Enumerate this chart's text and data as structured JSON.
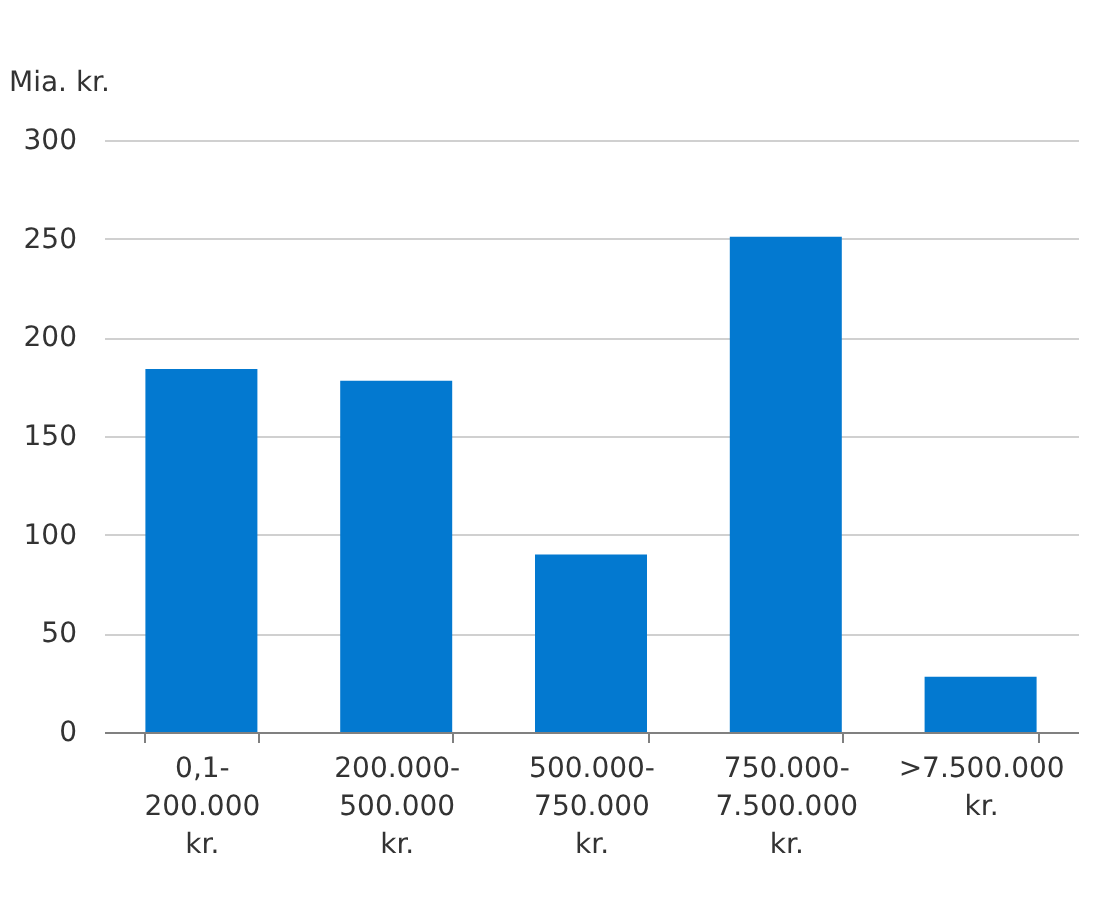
{
  "chart_data": {
    "type": "bar",
    "ylabel": "Mia. kr.",
    "categories": [
      "0,1-200.000 kr.",
      "200.000-500.000 kr.",
      "500.000-750.000 kr.",
      "750.000-7.500.000 kr.",
      ">7.500.000 kr."
    ],
    "values": [
      184,
      178,
      90,
      251,
      28
    ],
    "color": "#0379d0",
    "ylim": [
      0,
      300
    ],
    "yticks": [
      0,
      50,
      100,
      150,
      200,
      250,
      300
    ],
    "grid": "y"
  }
}
